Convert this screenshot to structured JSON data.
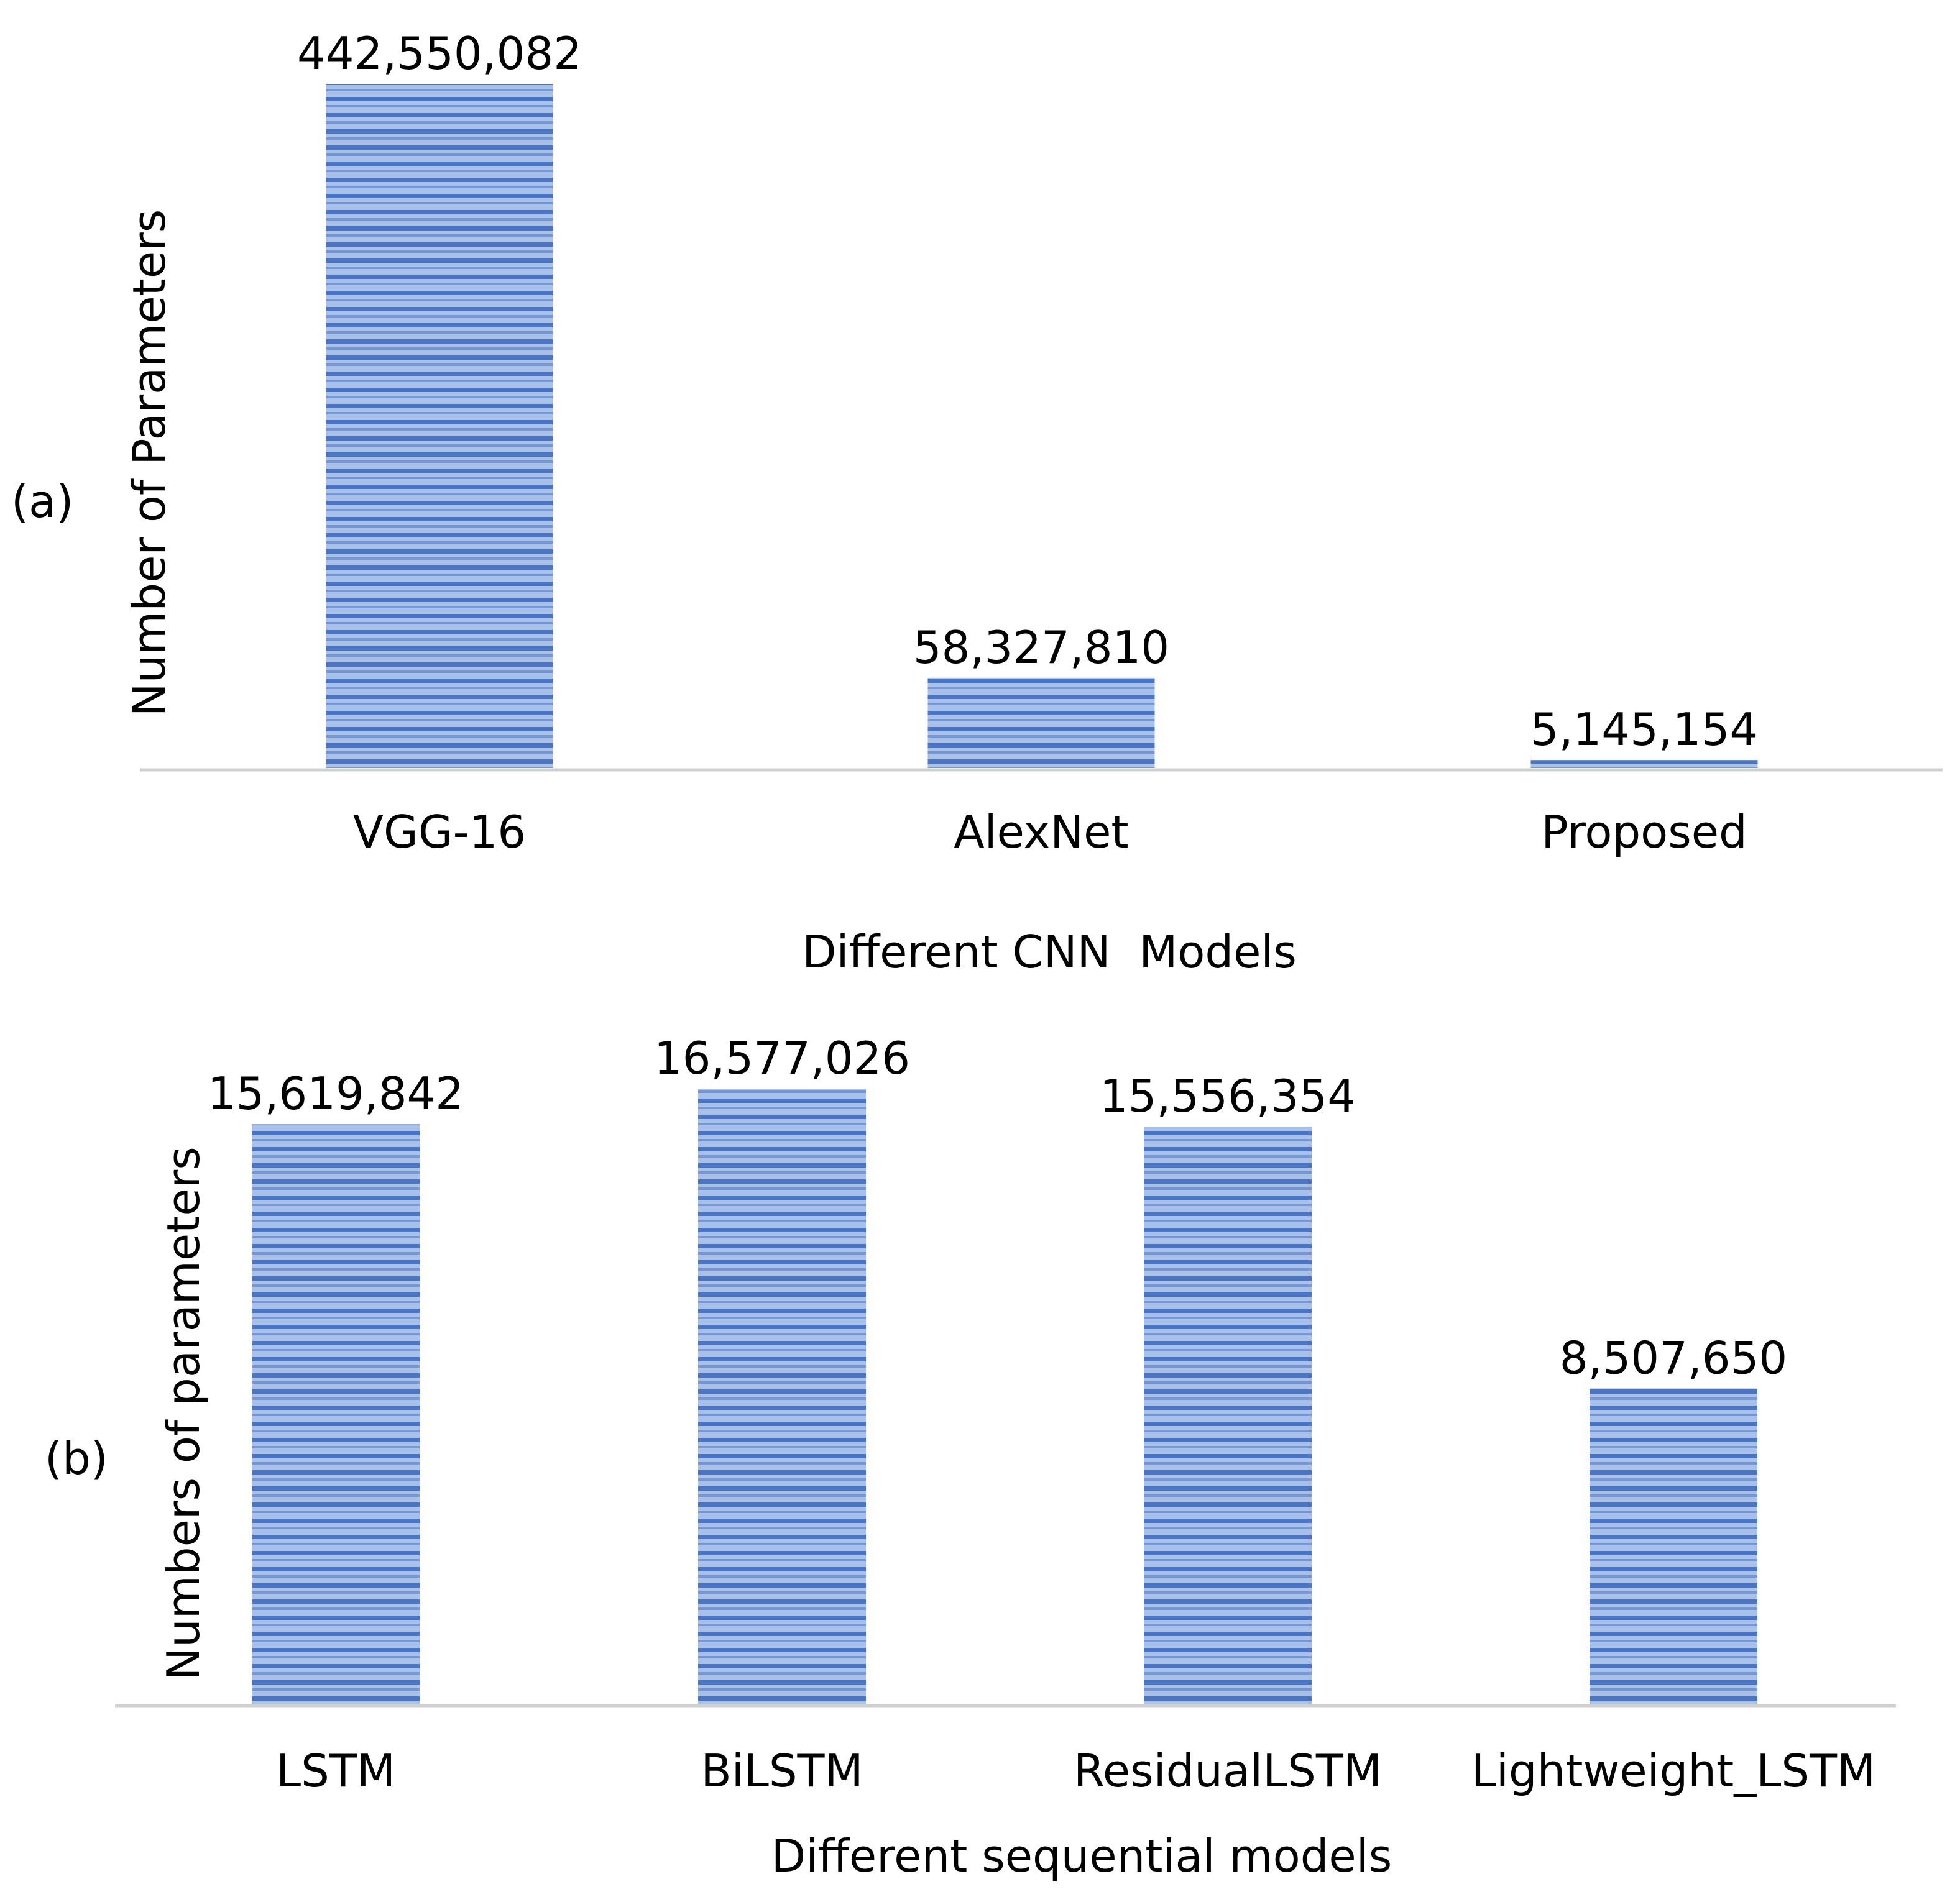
{
  "chart_data": [
    {
      "type": "bar",
      "panel_label": "(a)",
      "categories": [
        "VGG-16",
        "AlexNet",
        "Proposed"
      ],
      "values": [
        442550082,
        58327810,
        5145154
      ],
      "value_labels": [
        "442,550,082",
        "58,327,810",
        "5,145,154"
      ],
      "xlabel": "Different CNN  Models",
      "ylabel": "Number of Parameters",
      "ylim": [
        0,
        442550082
      ],
      "grid": false
    },
    {
      "type": "bar",
      "panel_label": "(b)",
      "categories": [
        "LSTM",
        "BiLSTM",
        "ResidualLSTM",
        "Lightweight_LSTM"
      ],
      "values": [
        15619842,
        16577026,
        15556354,
        8507650
      ],
      "value_labels": [
        "15,619,842",
        "16,577,026",
        "15,556,354",
        "8,507,650"
      ],
      "xlabel": "Different sequential models",
      "ylabel": "Numbers of parameters",
      "ylim": [
        0,
        16577026
      ],
      "grid": false
    }
  ],
  "colors": {
    "bar_dark": "#4a74c4",
    "bar_light": "#a9c0e9",
    "baseline": "#d0d0d0",
    "text": "#000000"
  }
}
